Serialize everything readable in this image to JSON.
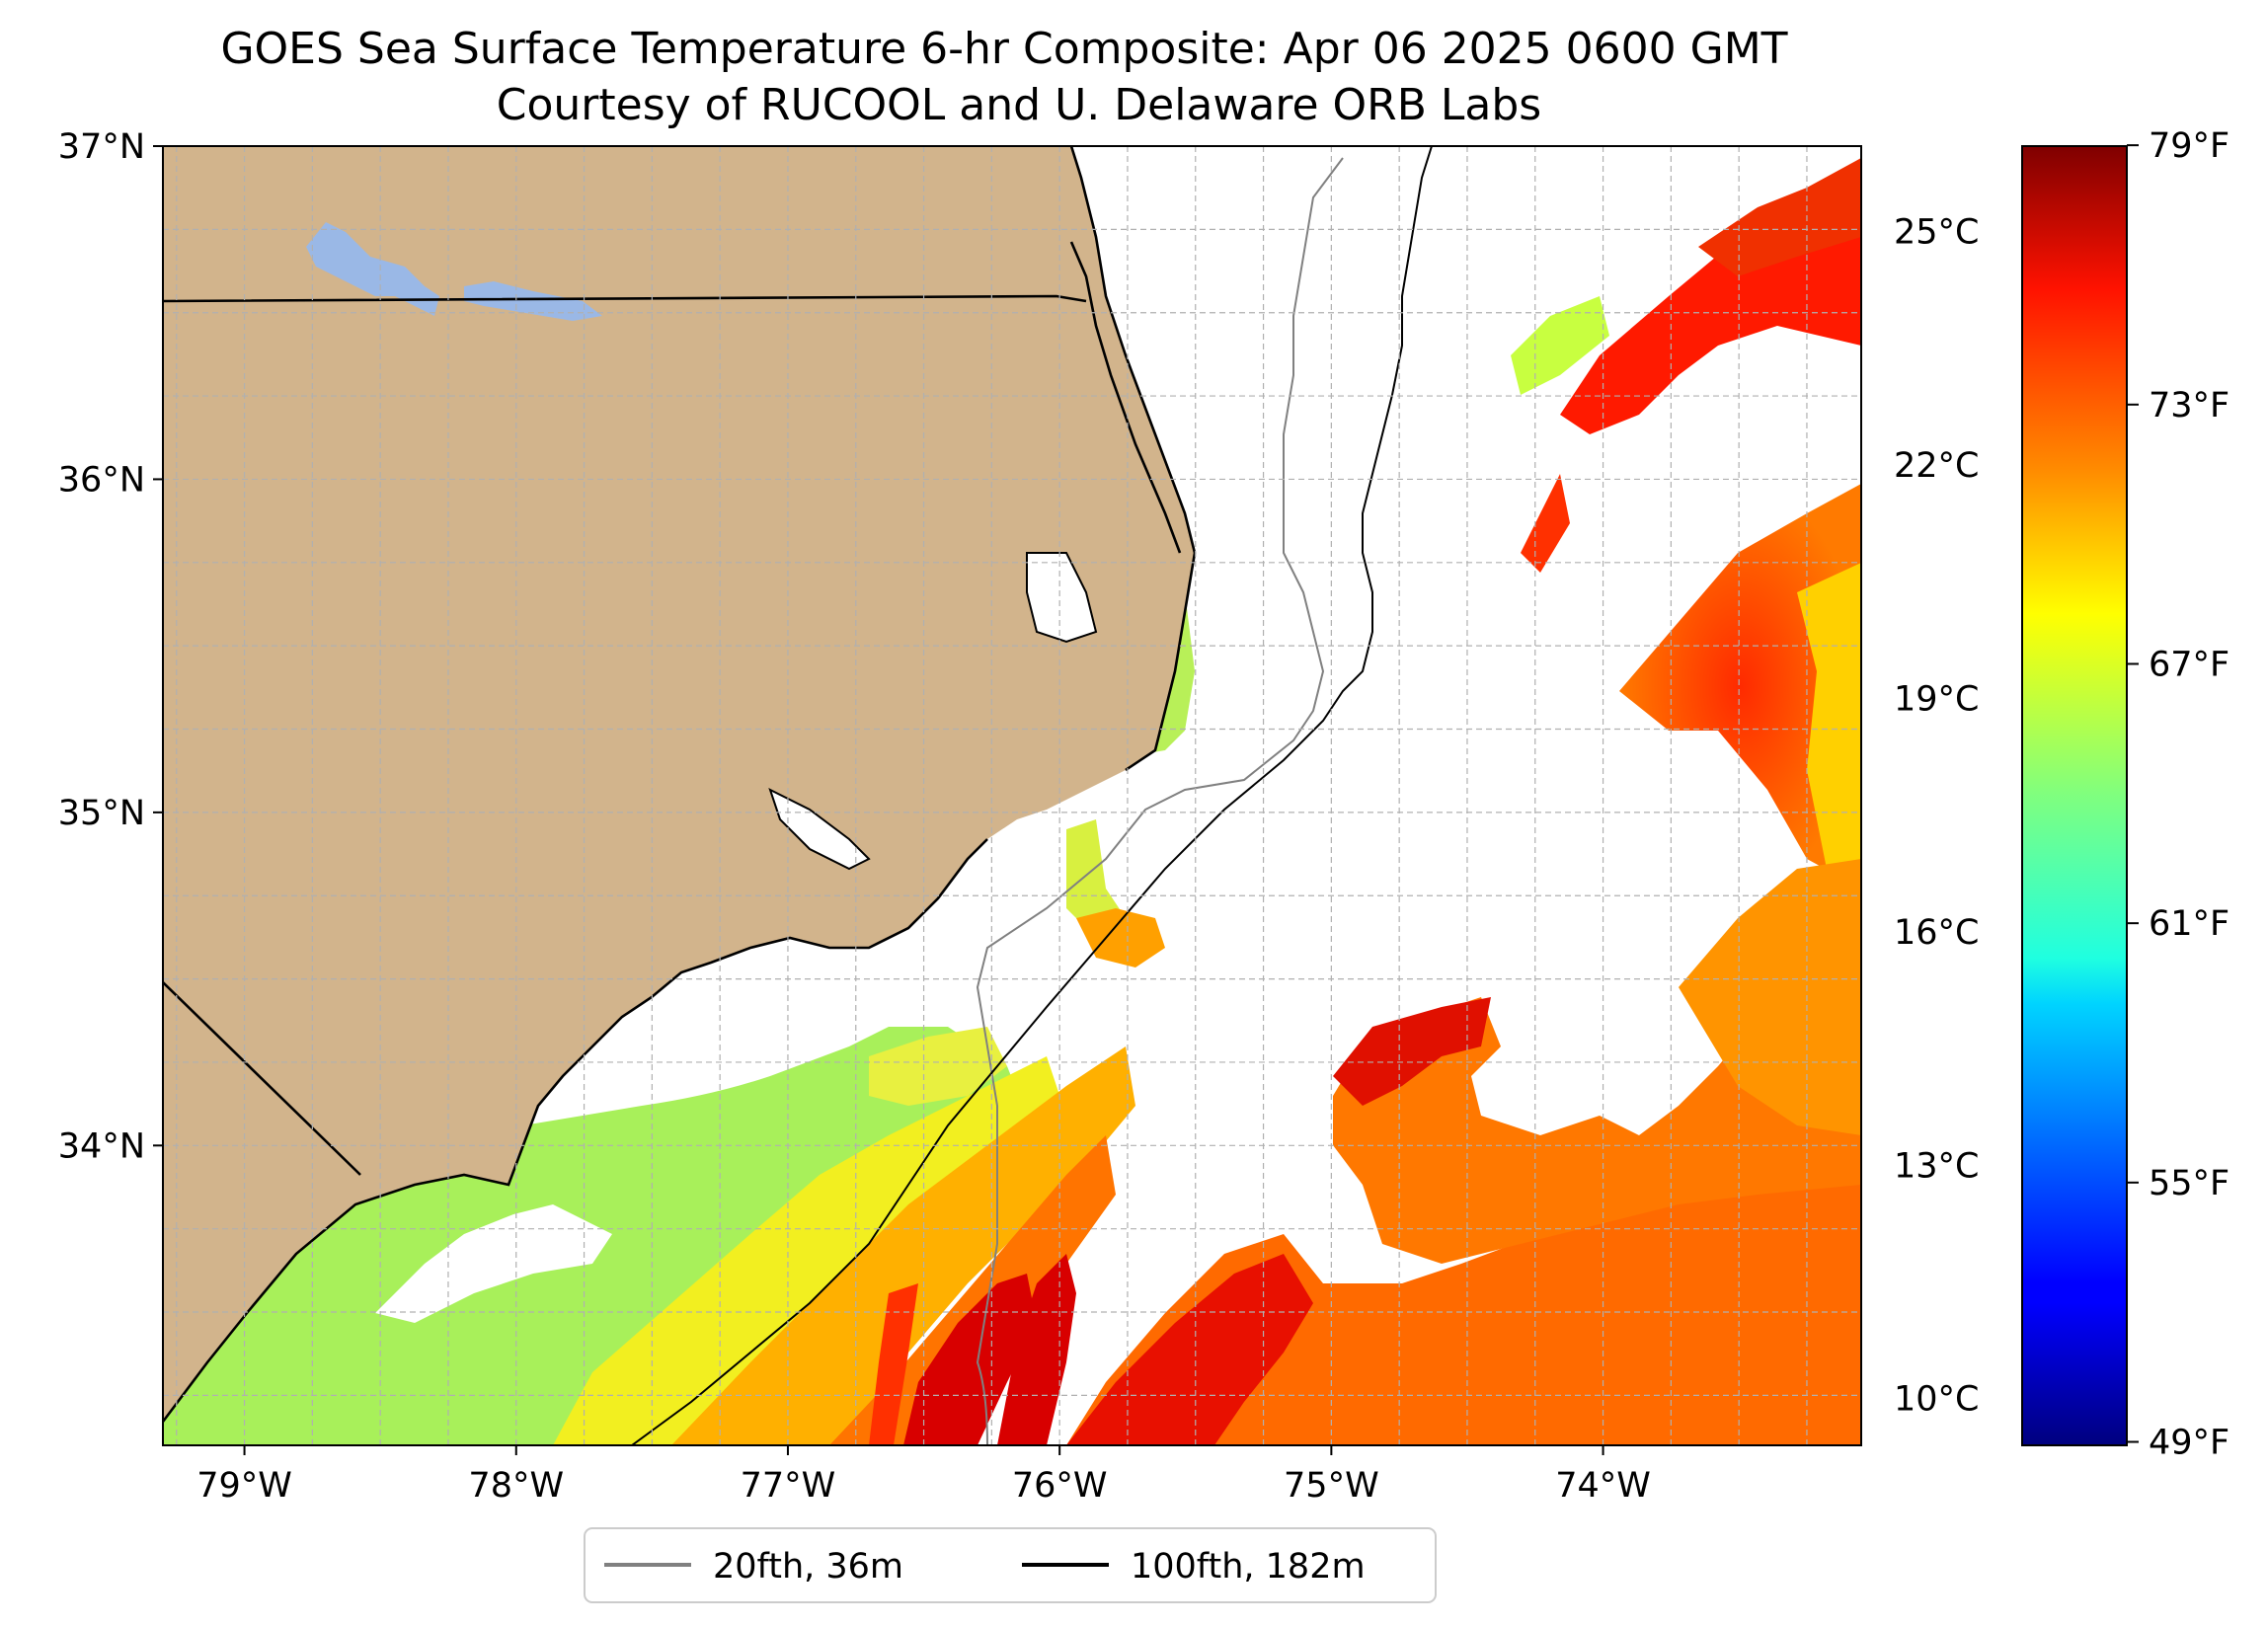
{
  "map": {
    "title_line1": "GOES Sea Surface Temperature 6-hr Composite: Apr 06 2025 0600 GMT",
    "title_line2": "Courtesy of RUCOOL and U. Delaware ORB Labs",
    "extent": {
      "lon_min": -79.3,
      "lon_max": -73.05,
      "lat_min": 33.1,
      "lat_max": 37.0
    },
    "lat_ticks": [
      {
        "value": 37,
        "label": "37°N"
      },
      {
        "value": 36,
        "label": "36°N"
      },
      {
        "value": 35,
        "label": "35°N"
      },
      {
        "value": 34,
        "label": "34°N"
      }
    ],
    "lon_ticks": [
      {
        "value": -79,
        "label": "79°W"
      },
      {
        "value": -78,
        "label": "78°W"
      },
      {
        "value": -77,
        "label": "77°W"
      },
      {
        "value": -76,
        "label": "76°W"
      },
      {
        "value": -75,
        "label": "75°W"
      },
      {
        "value": -74,
        "label": "74°W"
      }
    ],
    "gridlines": true,
    "land_color": "#d2b48c",
    "lake_color": "#9ab8e6",
    "legend": {
      "placement": "bottom-center",
      "entries": [
        {
          "label": "20fth, 36m",
          "color": "#808080"
        },
        {
          "label": "100fth, 182m",
          "color": "#000000"
        }
      ]
    }
  },
  "colorbar": {
    "colormap": "jet",
    "celsius_min": 9.4,
    "celsius_max": 26.1,
    "celsius_ticks": [
      {
        "value": 25,
        "label": "25°C"
      },
      {
        "value": 22,
        "label": "22°C"
      },
      {
        "value": 19,
        "label": "19°C"
      },
      {
        "value": 16,
        "label": "16°C"
      },
      {
        "value": 13,
        "label": "13°C"
      },
      {
        "value": 10,
        "label": "10°C"
      }
    ],
    "fahrenheit_ticks": [
      {
        "value": 79,
        "label": "79°F"
      },
      {
        "value": 73,
        "label": "73°F"
      },
      {
        "value": 67,
        "label": "67°F"
      },
      {
        "value": 61,
        "label": "61°F"
      },
      {
        "value": 55,
        "label": "55°F"
      },
      {
        "value": 49,
        "label": "49°F"
      }
    ]
  }
}
